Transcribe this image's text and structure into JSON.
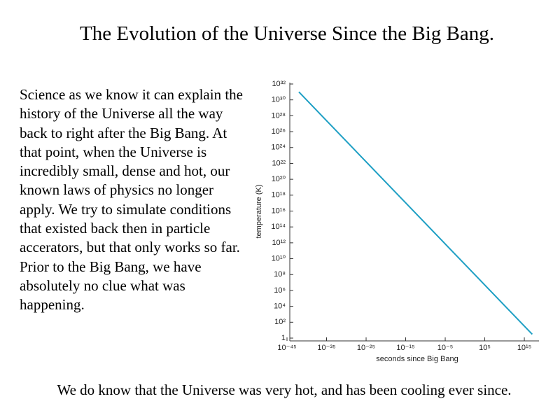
{
  "header": {
    "title": "The Evolution of the Universe Since the Big Bang."
  },
  "body": {
    "text": "Science as we know it can explain the history of the Universe all the way back to right after the Big Bang.  At that point, when the Universe is incredibly small, dense and hot, our known laws of physics no longer apply.  We try to simulate conditions that existed back then in particle accerators, but that only works so far.  Prior to the Big Bang, we have absolutely no clue what was happening."
  },
  "footer": {
    "text": "We do know that the Universe was very hot, and has been cooling ever since."
  },
  "chart_data": {
    "type": "line",
    "x_label": "seconds since Big Bang",
    "y_label": "temperature (K)",
    "x": [
      1e-42,
      1e+17
    ],
    "values": [
      1e+31,
      3
    ],
    "color": "#1e9fc4",
    "xscale": "log",
    "yscale": "log",
    "xlim": [
      1e-45,
      1e+18
    ],
    "ylim": [
      1,
      1e+32
    ],
    "xticks": [
      {
        "value": 1e-45,
        "label": "10⁻⁴⁵"
      },
      {
        "value": 1e-35,
        "label": "10⁻³⁵"
      },
      {
        "value": 1e-25,
        "label": "10⁻²⁵"
      },
      {
        "value": 1e-15,
        "label": "10⁻¹⁵"
      },
      {
        "value": 1e-05,
        "label": "10⁻⁵"
      },
      {
        "value": 100000.0,
        "label": "10⁵"
      },
      {
        "value": 1000000000000000.0,
        "label": "10¹⁵"
      }
    ],
    "yticks": [
      1,
      {
        "value": 100.0,
        "label": "10²"
      },
      {
        "value": 10000.0,
        "label": "10⁴"
      },
      {
        "value": 1000000.0,
        "label": "10⁶"
      },
      {
        "value": 100000000.0,
        "label": "10⁸"
      },
      {
        "value": 10000000000.0,
        "label": "10¹⁰"
      },
      {
        "value": 1000000000000.0,
        "label": "10¹²"
      },
      {
        "value": 100000000000000.0,
        "label": "10¹⁴"
      },
      {
        "value": 1e+16,
        "label": "10¹⁶"
      },
      {
        "value": 1e+18,
        "label": "10¹⁸"
      },
      {
        "value": 1e+20,
        "label": "10²⁰"
      },
      {
        "value": 1e+22,
        "label": "10²²"
      },
      {
        "value": 1e+24,
        "label": "10²⁴"
      },
      {
        "value": 1e+26,
        "label": "10²⁶"
      },
      {
        "value": 1e+28,
        "label": "10²⁸"
      },
      {
        "value": 1e+30,
        "label": "10³⁰"
      },
      {
        "value": 1e+32,
        "label": "10³²"
      }
    ]
  }
}
